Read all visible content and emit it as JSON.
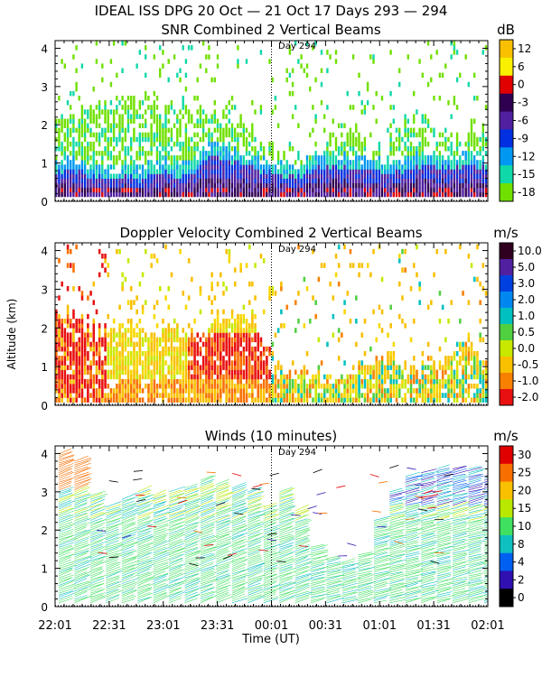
{
  "header": {
    "line1": "IDEAL ISS DPG  20 Oct — 21 Oct 17 Days 293 — 294"
  },
  "shared_axes": {
    "x_ticks": [
      "22:01",
      "22:31",
      "23:01",
      "23:31",
      "00:01",
      "00:31",
      "01:01",
      "01:31",
      "02:01"
    ],
    "xlabel": "Time (UT)",
    "ylabel": "Altitude (km)",
    "y_ticks": [
      "0",
      "1",
      "2",
      "3",
      "4"
    ],
    "day_marker_label": "Day 294",
    "day_marker_time": "00:01"
  },
  "chart_data": [
    {
      "type": "heatmap",
      "title": "SNR Combined 2 Vertical Beams",
      "unit": "dB",
      "xlim_hours": [
        22.0167,
        26.0167
      ],
      "ylim_km": [
        0,
        4.2
      ],
      "colorbar_labels": [
        "12",
        "6",
        "0",
        "-3",
        "-6",
        "-9",
        "-12",
        "-15",
        "-18"
      ],
      "colorbar_colors": [
        "#f8c000",
        "#f8f000",
        "#e00000",
        "#300050",
        "#5020a0",
        "#0030e0",
        "#0098f0",
        "#10d8a8",
        "#70e000"
      ],
      "coverage_top_km": [
        2.1,
        2.3,
        2.5,
        2.4,
        2.6,
        2.5,
        2.3,
        2.6,
        2.2,
        2.4,
        2.1,
        2.0,
        1.5,
        1.2,
        1.0,
        1.1,
        1.6,
        2.0,
        1.3,
        1.2,
        2.0,
        2.1,
        1.9,
        1.4,
        1.9,
        1.6
      ],
      "strong_echo_top_km": [
        0.7,
        0.8,
        0.6,
        0.5,
        0.6,
        0.5,
        0.7,
        0.6,
        0.7,
        1.2,
        1.0,
        0.9,
        0.7,
        0.6,
        0.6,
        0.8,
        0.9,
        0.8,
        0.8,
        0.7,
        0.7,
        0.9,
        0.9,
        0.8,
        0.9,
        0.8
      ]
    },
    {
      "type": "heatmap",
      "title": "Doppler Velocity Combined 2 Vertical Beams",
      "unit": "m/s",
      "xlim_hours": [
        22.0167,
        26.0167
      ],
      "ylim_km": [
        0,
        4.2
      ],
      "colorbar_labels": [
        "10.0",
        "5.0",
        "3.0",
        "2.0",
        "1.0",
        "0.5",
        "0.0",
        "-0.5",
        "-1.0",
        "-2.0"
      ],
      "colorbar_colors": [
        "#300020",
        "#5020a0",
        "#0040e0",
        "#0088f0",
        "#00c0c0",
        "#50d040",
        "#c8e800",
        "#f8c000",
        "#f88000",
        "#e81010"
      ],
      "coverage_top_km": [
        2.4,
        2.2,
        1.9,
        2.0,
        2.2,
        1.7,
        1.9,
        1.8,
        2.0,
        2.3,
        2.2,
        1.0,
        0.7,
        0.8,
        0.7,
        0.9,
        1.1,
        1.2,
        0.9,
        1.0,
        1.3,
        1.6,
        1.0
      ],
      "zone_colors": [
        "#e81010",
        "#f87000",
        "#f8c000",
        "#f8d800",
        "#50d040"
      ]
    },
    {
      "type": "wind_barbs",
      "title": "Winds (10 minutes)",
      "unit": "m/s",
      "interval_minutes": 10,
      "xlim_hours": [
        22.0167,
        26.0167
      ],
      "ylim_km": [
        0,
        4.2
      ],
      "colorbar_labels": [
        "30",
        "25",
        "20",
        "15",
        "10",
        "8",
        "4",
        "2",
        "0"
      ],
      "colorbar_colors": [
        "#e00000",
        "#f87000",
        "#f8c000",
        "#b8e800",
        "#40e060",
        "#10c0c0",
        "#0060f0",
        "#3010b0",
        "#000000"
      ],
      "profile_tops_km": [
        4.0,
        3.8,
        2.9,
        2.6,
        2.8,
        3.0,
        2.9,
        3.0,
        3.1,
        3.3,
        3.2,
        3.1,
        3.0,
        2.6,
        3.0,
        2.5,
        1.6,
        1.3,
        1.2,
        1.4,
        2.3,
        3.0,
        3.4,
        3.5,
        3.6,
        3.6,
        3.6,
        3.4
      ]
    }
  ]
}
